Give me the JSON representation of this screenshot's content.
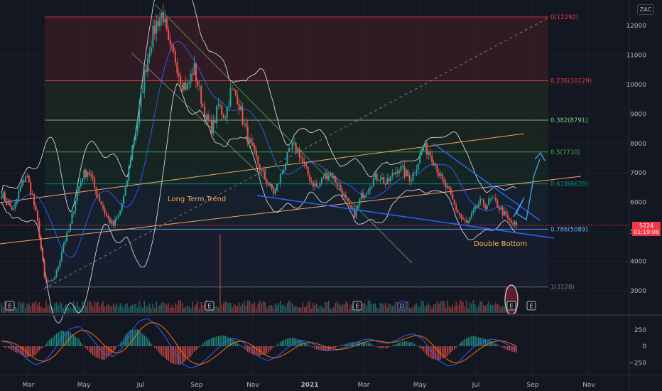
{
  "symbol_tag": "ZAC",
  "last_price": {
    "value": "5224",
    "countdown": "01:19:06"
  },
  "annotations": {
    "trend": "Long Term Trend",
    "pattern": "Double Bottom"
  },
  "colors": {
    "background": "#131722",
    "up": "#26a69a",
    "down": "#ef5350",
    "macd": "#2962ff",
    "signal": "#ff6d00",
    "trendline": "#f7a35c",
    "wedge": "#2962ff",
    "bands": "#d1d4dc"
  },
  "event_markers": [
    "E",
    "E",
    "E",
    "D",
    "E",
    "E"
  ],
  "chart_data": [
    {
      "type": "candlestick",
      "x_ticks": [
        "Mar",
        "May",
        "Jul",
        "Sep",
        "Nov",
        "2021",
        "Mar",
        "May",
        "Jul",
        "Sep",
        "Nov"
      ],
      "y_ticks": [
        3000,
        4000,
        5000,
        6000,
        7000,
        8000,
        9000,
        10000,
        11000,
        12000
      ],
      "ylim": [
        2600,
        12800
      ],
      "price_path": [
        6300,
        5950,
        5700,
        6500,
        6950,
        6200,
        5100,
        3350,
        3250,
        3700,
        4600,
        5100,
        6200,
        6900,
        7100,
        6500,
        6000,
        5500,
        5200,
        5600,
        6400,
        7800,
        8800,
        10300,
        11400,
        12100,
        12450,
        11200,
        10900,
        10100,
        9900,
        10600,
        9700,
        8800,
        8500,
        9300,
        8900,
        9800,
        9600,
        8700,
        8000,
        7500,
        7000,
        6600,
        6300,
        6900,
        7500,
        7900,
        7700,
        7100,
        6700,
        6500,
        6900,
        7000,
        6700,
        6300,
        5800,
        5600,
        6200,
        6500,
        6800,
        6900,
        6600,
        6900,
        7200,
        7000,
        6800,
        7300,
        7900,
        7700,
        7300,
        6700,
        6400,
        5900,
        5500,
        5250,
        5600,
        6000,
        5900,
        6100,
        5900,
        5600,
        5300,
        5224
      ],
      "fibonacci": [
        {
          "ratio": "0",
          "price": 12292
        },
        {
          "ratio": "0.236",
          "price": 10129
        },
        {
          "ratio": "0.382",
          "price": 8791
        },
        {
          "ratio": "0.5",
          "price": 7710
        },
        {
          "ratio": "0.618",
          "price": 6628
        },
        {
          "ratio": "0.786",
          "price": 5089
        },
        {
          "ratio": "1",
          "price": 3128
        }
      ],
      "macd": {
        "y_ticks": [
          250,
          0,
          -250
        ],
        "macd_path": [
          80,
          40,
          -60,
          -200,
          -280,
          -230,
          -80,
          120,
          260,
          300,
          200,
          40,
          -120,
          -160,
          -40,
          200,
          380,
          420,
          330,
          160,
          -60,
          -260,
          -330,
          -290,
          -180,
          -60,
          60,
          120,
          80,
          -40,
          -160,
          -220,
          -170,
          -60,
          40,
          90,
          60,
          -10,
          -70,
          -60,
          -20,
          40,
          90,
          110,
          60,
          40,
          90,
          160,
          190,
          120,
          -60,
          -220,
          -300,
          -270,
          -140,
          -10,
          60,
          110,
          90,
          20,
          -60
        ]
      }
    }
  ]
}
